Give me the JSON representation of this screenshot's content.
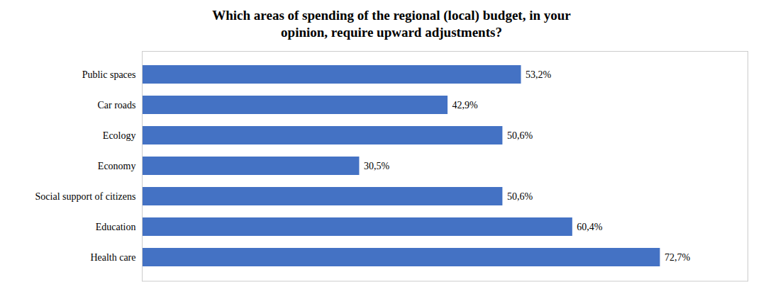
{
  "chart_data": {
    "type": "bar",
    "orientation": "horizontal",
    "title": "Which areas of spending of the regional (local) budget, in your\nopinion, require upward adjustments?",
    "categories": [
      "Public spaces",
      "Car roads",
      "Ecology",
      "Economy",
      "Social support of citizens",
      "Education",
      "Health care"
    ],
    "values": [
      53.2,
      42.9,
      50.6,
      30.5,
      50.6,
      60.4,
      72.7
    ],
    "value_labels": [
      "53,2%",
      "42,9%",
      "50,6%",
      "30,5%",
      "50,6%",
      "60,4%",
      "72,7%"
    ],
    "data_labels": true,
    "color": "#4472C4",
    "xlim": [
      0,
      85
    ],
    "tick_labels": "y",
    "grid": false
  }
}
